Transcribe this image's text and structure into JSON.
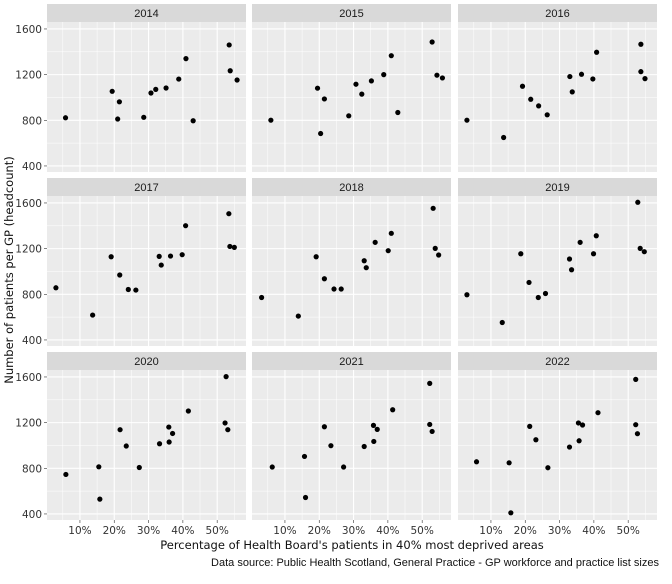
{
  "chart_data": {
    "type": "scatter",
    "xlabel": "Percentage of Health Board's patients in 40% most deprived areas",
    "ylabel": "Number of patients per GP (headcount)",
    "caption": "Data source: Public Health Scotland, General Practice - GP workforce and practice list sizes",
    "xlim": [
      0.4,
      58.4
    ],
    "ylim": [
      347,
      1661
    ],
    "x_ticks": [
      10,
      20,
      30,
      40,
      50
    ],
    "x_tick_labels": [
      "10%",
      "20%",
      "30%",
      "40%",
      "50%"
    ],
    "y_ticks": [
      400,
      800,
      1200,
      1600
    ],
    "y_tick_labels": [
      "400",
      "800",
      "1200",
      "1600"
    ],
    "grid": true,
    "colors": {
      "panel_bg": "#ebebeb",
      "strip_bg": "#d9d9d9",
      "grid": "#ffffff",
      "point": "#000000"
    },
    "facets": [
      {
        "label": "2014",
        "x": [
          5.8,
          19.4,
          21.5,
          21.0,
          28.6,
          30.7,
          32.1,
          35.1,
          38.8,
          40.9,
          43.0,
          53.5,
          53.8,
          55.8
        ],
        "y": [
          822,
          1054,
          962,
          811,
          826,
          1039,
          1071,
          1083,
          1161,
          1340,
          796,
          1460,
          1234,
          1153
        ]
      },
      {
        "label": "2015",
        "x": [
          5.9,
          19.5,
          21.5,
          20.4,
          28.6,
          30.7,
          32.4,
          35.2,
          38.8,
          41.0,
          42.9,
          52.9,
          54.3,
          55.9
        ],
        "y": [
          801,
          1081,
          987,
          684,
          839,
          1116,
          1029,
          1145,
          1200,
          1366,
          868,
          1486,
          1195,
          1171
        ]
      },
      {
        "label": "2016",
        "x": [
          3.0,
          13.7,
          19.2,
          21.6,
          23.9,
          26.4,
          33.0,
          33.7,
          36.4,
          39.7,
          40.8,
          53.7,
          53.7,
          54.9
        ],
        "y": [
          801,
          649,
          1098,
          984,
          926,
          848,
          1183,
          1049,
          1203,
          1162,
          1396,
          1466,
          1226,
          1165
        ]
      },
      {
        "label": "2017",
        "x": [
          3.0,
          13.7,
          19.1,
          21.6,
          24.1,
          26.3,
          33.1,
          33.7,
          36.4,
          39.8,
          40.8,
          53.4,
          53.7,
          55.0
        ],
        "y": [
          857,
          618,
          1129,
          969,
          842,
          837,
          1132,
          1056,
          1135,
          1147,
          1401,
          1506,
          1219,
          1211
        ]
      },
      {
        "label": "2018",
        "x": [
          3.2,
          13.9,
          19.1,
          21.5,
          24.3,
          26.4,
          33.1,
          33.7,
          36.3,
          40.1,
          41.0,
          53.2,
          53.8,
          54.8
        ],
        "y": [
          772,
          609,
          1129,
          936,
          846,
          846,
          1094,
          1033,
          1255,
          1182,
          1334,
          1553,
          1202,
          1144
        ]
      },
      {
        "label": "2019",
        "x": [
          3.0,
          13.3,
          18.7,
          21.1,
          23.8,
          25.9,
          32.9,
          33.5,
          36.0,
          39.9,
          40.7,
          52.8,
          53.5,
          54.7
        ],
        "y": [
          796,
          553,
          1155,
          904,
          772,
          807,
          1109,
          1015,
          1255,
          1155,
          1313,
          1606,
          1202,
          1173
        ]
      },
      {
        "label": "2020",
        "x": [
          5.9,
          15.5,
          15.8,
          21.7,
          23.5,
          27.3,
          33.2,
          35.9,
          36.0,
          37.0,
          41.6,
          52.3,
          52.6,
          53.1
        ],
        "y": [
          746,
          813,
          530,
          1138,
          995,
          807,
          1015,
          1161,
          1030,
          1105,
          1302,
          1197,
          1603,
          1138
        ]
      },
      {
        "label": "2021",
        "x": [
          6.3,
          15.7,
          16.0,
          21.5,
          23.4,
          27.1,
          33.1,
          35.8,
          35.9,
          36.9,
          41.4,
          52.2,
          52.2,
          52.9
        ],
        "y": [
          811,
          904,
          544,
          1164,
          998,
          811,
          991,
          1176,
          1035,
          1141,
          1313,
          1544,
          1184,
          1123
        ]
      },
      {
        "label": "2022",
        "x": [
          5.8,
          15.3,
          15.8,
          21.3,
          23.1,
          26.6,
          32.9,
          35.5,
          35.7,
          36.7,
          41.2,
          52.2,
          52.2,
          52.7
        ],
        "y": [
          857,
          848,
          410,
          1167,
          1050,
          805,
          986,
          1197,
          1041,
          1179,
          1287,
          1579,
          1182,
          1103
        ]
      }
    ]
  }
}
